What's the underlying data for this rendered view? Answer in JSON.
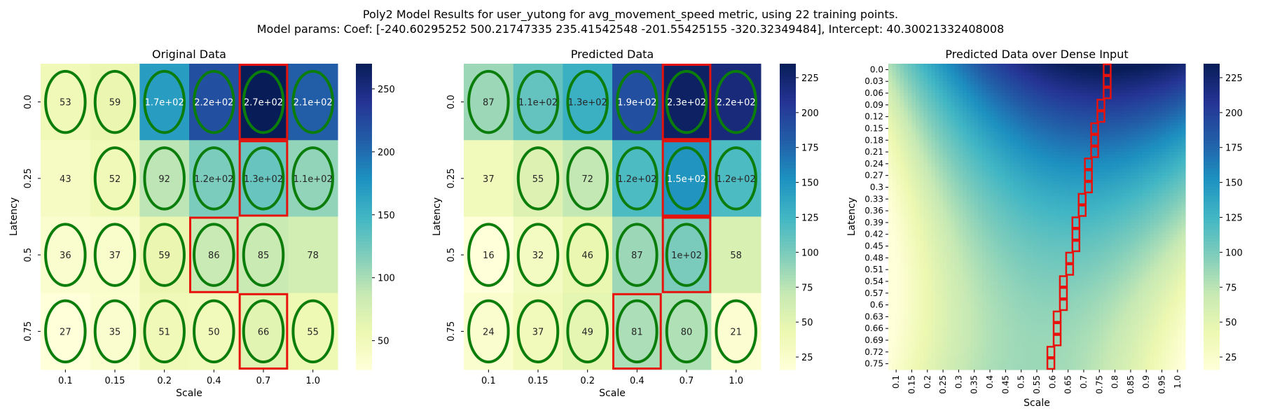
{
  "figure": {
    "title_line1": "Poly2 Model Results for user_yutong for avg_movement_speed metric, using 22 training points.",
    "title_line2": "Model params: Coef: [-240.60295252  500.21747335  235.41542548 -201.55425155 -320.32349484], Intercept: 40.30021332408008"
  },
  "chart_data": [
    {
      "type": "heatmap",
      "title": "Original Data",
      "xlabel": "Scale",
      "ylabel": "Latency",
      "x_categories": [
        "0.1",
        "0.15",
        "0.2",
        "0.4",
        "0.7",
        "1.0"
      ],
      "y_categories": [
        "0.0",
        "0.25",
        "0.5",
        "0.75"
      ],
      "values": [
        [
          53,
          59,
          170,
          220,
          270,
          210
        ],
        [
          43,
          52,
          92,
          120,
          130,
          110
        ],
        [
          36,
          37,
          59,
          86,
          85,
          78
        ],
        [
          27,
          35,
          51,
          50,
          66,
          55
        ]
      ],
      "annotations": [
        [
          "53",
          "59",
          "1.7e+02",
          "2.2e+02",
          "2.7e+02",
          "2.1e+02"
        ],
        [
          "43",
          "52",
          "92",
          "1.2e+02",
          "1.3e+02",
          "1.1e+02"
        ],
        [
          "36",
          "37",
          "59",
          "86",
          "85",
          "78"
        ],
        [
          "27",
          "35",
          "51",
          "50",
          "66",
          "55"
        ]
      ],
      "training_ellipses": [
        [
          0,
          0
        ],
        [
          0,
          1
        ],
        [
          0,
          2
        ],
        [
          0,
          3
        ],
        [
          0,
          4
        ],
        [
          0,
          5
        ],
        [
          1,
          1
        ],
        [
          1,
          2
        ],
        [
          1,
          3
        ],
        [
          1,
          4
        ],
        [
          1,
          5
        ],
        [
          2,
          0
        ],
        [
          2,
          1
        ],
        [
          2,
          2
        ],
        [
          2,
          3
        ],
        [
          2,
          4
        ],
        [
          3,
          0
        ],
        [
          3,
          1
        ],
        [
          3,
          2
        ],
        [
          3,
          3
        ],
        [
          3,
          4
        ],
        [
          3,
          5
        ]
      ],
      "optimal_boxes": [
        [
          0,
          4
        ],
        [
          1,
          4
        ],
        [
          2,
          3
        ],
        [
          3,
          4
        ]
      ],
      "colorbar": {
        "vmin": 27,
        "vmax": 270,
        "ticks": [
          50,
          100,
          150,
          200,
          250
        ]
      }
    },
    {
      "type": "heatmap",
      "title": "Predicted Data",
      "xlabel": "Scale",
      "ylabel": "Latency",
      "x_categories": [
        "0.1",
        "0.15",
        "0.2",
        "0.4",
        "0.7",
        "1.0"
      ],
      "y_categories": [
        "0.0",
        "0.25",
        "0.5",
        "0.75"
      ],
      "values": [
        [
          87,
          110,
          130,
          190,
          230,
          220
        ],
        [
          37,
          55,
          72,
          120,
          150,
          120
        ],
        [
          16,
          32,
          46,
          87,
          100,
          58
        ],
        [
          24,
          37,
          49,
          81,
          80,
          21
        ]
      ],
      "annotations": [
        [
          "87",
          "1.1e+02",
          "1.3e+02",
          "1.9e+02",
          "2.3e+02",
          "2.2e+02"
        ],
        [
          "37",
          "55",
          "72",
          "1.2e+02",
          "1.5e+02",
          "1.2e+02"
        ],
        [
          "16",
          "32",
          "46",
          "87",
          "1e+02",
          "58"
        ],
        [
          "24",
          "37",
          "49",
          "81",
          "80",
          "21"
        ]
      ],
      "training_ellipses": [
        [
          0,
          0
        ],
        [
          0,
          1
        ],
        [
          0,
          2
        ],
        [
          0,
          3
        ],
        [
          0,
          4
        ],
        [
          0,
          5
        ],
        [
          1,
          1
        ],
        [
          1,
          2
        ],
        [
          1,
          3
        ],
        [
          1,
          4
        ],
        [
          1,
          5
        ],
        [
          2,
          0
        ],
        [
          2,
          1
        ],
        [
          2,
          2
        ],
        [
          2,
          3
        ],
        [
          2,
          4
        ],
        [
          3,
          0
        ],
        [
          3,
          1
        ],
        [
          3,
          2
        ],
        [
          3,
          3
        ],
        [
          3,
          4
        ],
        [
          3,
          5
        ]
      ],
      "optimal_boxes": [
        [
          0,
          4
        ],
        [
          1,
          4
        ],
        [
          2,
          4
        ],
        [
          3,
          3
        ]
      ],
      "colorbar": {
        "vmin": 16,
        "vmax": 235,
        "ticks": [
          25,
          50,
          75,
          100,
          125,
          150,
          175,
          200,
          225
        ]
      }
    },
    {
      "type": "heatmap",
      "title": "Predicted Data over Dense Input",
      "xlabel": "Scale",
      "ylabel": "Latency",
      "x_categories": [
        "0.1",
        "0.15",
        "0.2",
        "0.25",
        "0.3",
        "0.35",
        "0.4",
        "0.45",
        "0.5",
        "0.55",
        "0.6",
        "0.65",
        "0.7",
        "0.75",
        "0.8",
        "0.85",
        "0.9",
        "0.95",
        "1.0"
      ],
      "y_categories": [
        "0.0",
        "0.03",
        "0.06",
        "0.09",
        "0.12",
        "0.15",
        "0.18",
        "0.21",
        "0.24",
        "0.27",
        "0.3",
        "0.33",
        "0.36",
        "0.39",
        "0.42",
        "0.45",
        "0.48",
        "0.51",
        "0.54",
        "0.57",
        "0.6",
        "0.63",
        "0.66",
        "0.69",
        "0.72",
        "0.75"
      ],
      "model": {
        "intercept": 40.30021332408008,
        "coef": [
          -240.60295252,
          500.21747335,
          235.41542548,
          -201.55425155,
          -320.32349484
        ]
      },
      "optimal_scale_per_row": [
        0.775,
        0.775,
        0.775,
        0.755,
        0.755,
        0.735,
        0.735,
        0.735,
        0.715,
        0.715,
        0.715,
        0.695,
        0.695,
        0.675,
        0.675,
        0.675,
        0.655,
        0.655,
        0.635,
        0.635,
        0.635,
        0.615,
        0.615,
        0.615,
        0.595,
        0.595
      ],
      "colorbar": {
        "vmin": 16,
        "vmax": 235,
        "ticks": [
          25,
          50,
          75,
          100,
          125,
          150,
          175,
          200,
          225
        ]
      }
    }
  ]
}
